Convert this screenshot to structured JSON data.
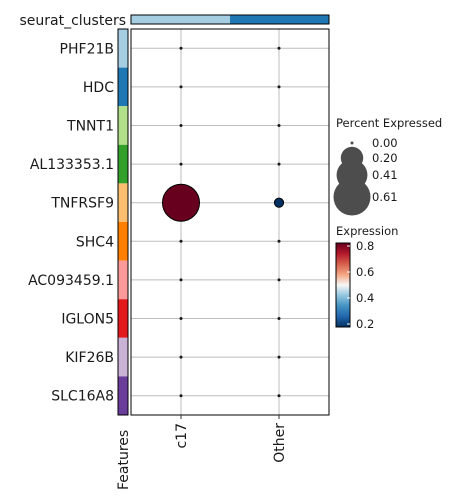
{
  "chart_data": {
    "type": "dotplot",
    "top_annotation_label": "seurat_clusters",
    "top_annotation_colors": [
      "#a6cee3",
      "#1f78b4"
    ],
    "left_annotation_label": "Features",
    "categories": [
      "c17",
      "Other"
    ],
    "genes": [
      "PHF21B",
      "HDC",
      "TNNT1",
      "AL133353.1",
      "TNFRSF9",
      "SHC4",
      "AC093459.1",
      "IGLON5",
      "KIF26B",
      "SLC16A8"
    ],
    "gene_colors": [
      "#a6cee3",
      "#1f78b4",
      "#b2df8a",
      "#33a02c",
      "#fdbf6f",
      "#ff7f00",
      "#fb9a99",
      "#e31a1c",
      "#cab2d6",
      "#6a3d9a"
    ],
    "percent_expressed": [
      [
        0.0,
        0.0
      ],
      [
        0.0,
        0.0
      ],
      [
        0.0,
        0.0
      ],
      [
        0.0,
        0.0
      ],
      [
        0.61,
        0.02
      ],
      [
        0.0,
        0.0
      ],
      [
        0.0,
        0.0
      ],
      [
        0.0,
        0.0
      ],
      [
        0.0,
        0.0
      ],
      [
        0.0,
        0.0
      ]
    ],
    "expression": [
      [
        0.2,
        0.2
      ],
      [
        0.2,
        0.2
      ],
      [
        0.2,
        0.2
      ],
      [
        0.2,
        0.2
      ],
      [
        0.85,
        0.2
      ],
      [
        0.2,
        0.2
      ],
      [
        0.2,
        0.2
      ],
      [
        0.2,
        0.2
      ],
      [
        0.2,
        0.2
      ],
      [
        0.2,
        0.2
      ]
    ],
    "size_legend": {
      "title": "Percent Expressed",
      "labels": [
        "0.00",
        "0.20",
        "0.41",
        "0.61"
      ],
      "values": [
        0.0,
        0.2,
        0.41,
        0.61
      ]
    },
    "color_legend": {
      "title": "Expression",
      "labels": [
        "0.8",
        "0.6",
        "0.4",
        "0.2"
      ],
      "range": [
        0.2,
        0.85
      ],
      "colors": [
        "#053061",
        "#2166ac",
        "#4393c3",
        "#92c5de",
        "#f7f7f7",
        "#f4a582",
        "#d6604d",
        "#b2182b",
        "#67001f"
      ]
    },
    "grid": true
  }
}
